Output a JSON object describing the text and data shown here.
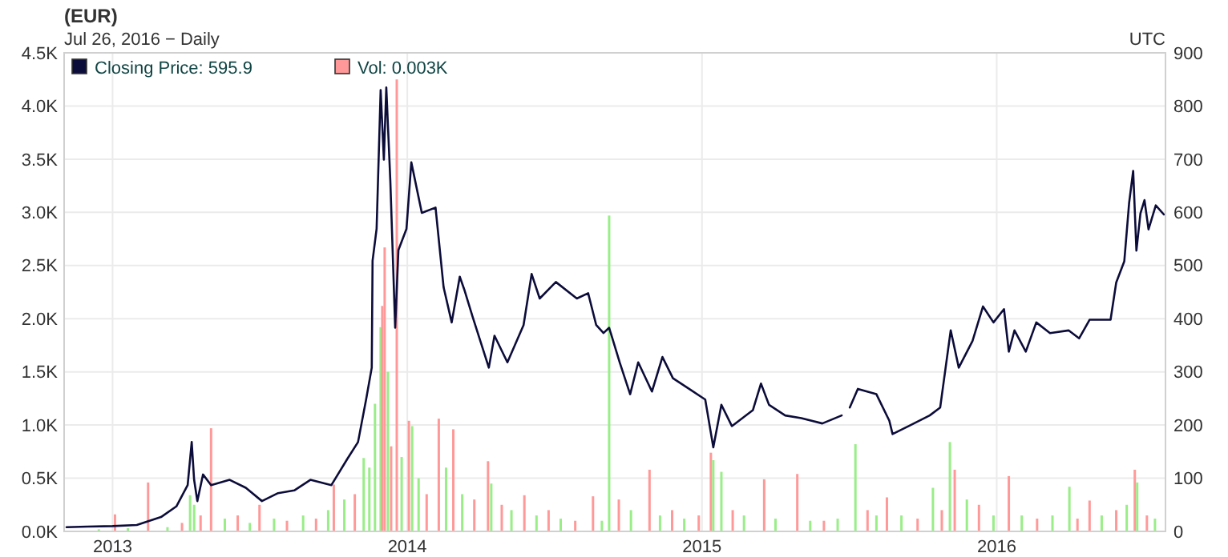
{
  "chart_data": {
    "type": "line",
    "title": "(EUR)",
    "subtitle": "Jul 26, 2016 − Daily",
    "annotations": [
      "UTC"
    ],
    "xlim": [
      "2012-11-02",
      "2016-07-28"
    ],
    "xticks": [
      {
        "value": "2013-01-01",
        "label": "2013"
      },
      {
        "value": "2014-01-01",
        "label": "2014"
      },
      {
        "value": "2015-01-01",
        "label": "2015"
      },
      {
        "value": "2016-01-01",
        "label": "2016"
      }
    ],
    "ylim": [
      0,
      4.5
    ],
    "yticks": [
      {
        "value": 0,
        "label": "0.0K"
      },
      {
        "value": 0.5,
        "label": "0.5K"
      },
      {
        "value": 1,
        "label": "1.0K"
      },
      {
        "value": 1.5,
        "label": "1.5K"
      },
      {
        "value": 2,
        "label": "2.0K"
      },
      {
        "value": 2.5,
        "label": "2.5K"
      },
      {
        "value": 3,
        "label": "3.0K"
      },
      {
        "value": 3.5,
        "label": "3.5K"
      },
      {
        "value": 4,
        "label": "4.0K"
      },
      {
        "value": 4.5,
        "label": "4.5K"
      }
    ],
    "y2lim": [
      0,
      900
    ],
    "y2ticks": [
      0,
      100,
      200,
      300,
      400,
      500,
      600,
      700,
      800,
      900
    ],
    "grid": true,
    "legend": "top left",
    "series": [
      {
        "name": "Closing Price: 595.9",
        "axis": "y2",
        "color": "#0c0c3a",
        "x": [
          "2012-11-05",
          "2012-12-01",
          "2013-01-01",
          "2013-01-31",
          "2013-03-02",
          "2013-03-21",
          "2013-04-04",
          "2013-04-09",
          "2013-04-12",
          "2013-04-16",
          "2013-04-23",
          "2013-05-03",
          "2013-05-26",
          "2013-06-15",
          "2013-07-05",
          "2013-07-25",
          "2013-08-14",
          "2013-09-03",
          "2013-09-29",
          "2013-10-19",
          "2013-11-01",
          "2013-11-11",
          "2013-11-18",
          "2013-11-19",
          "2013-11-24",
          "2013-11-29",
          "2013-12-03",
          "2013-12-06",
          "2013-12-11",
          "2013-12-17",
          "2013-12-21",
          "2013-12-31",
          "2014-01-06",
          "2014-01-19",
          "2014-02-05",
          "2014-02-15",
          "2014-02-25",
          "2014-03-07",
          "2014-03-13",
          "2014-03-23",
          "2014-04-12",
          "2014-04-19",
          "2014-05-05",
          "2014-05-25",
          "2014-06-04",
          "2014-06-14",
          "2014-07-04",
          "2014-07-30",
          "2014-08-13",
          "2014-08-23",
          "2014-09-01",
          "2014-09-08",
          "2014-09-21",
          "2014-10-04",
          "2014-10-14",
          "2014-10-31",
          "2014-11-13",
          "2014-11-26",
          "2014-12-16",
          "2015-01-05",
          "2015-01-15",
          "2015-01-25",
          "2015-02-07",
          "2015-03-05",
          "2015-03-15",
          "2015-03-25",
          "2015-04-14",
          "2015-05-04",
          "2015-05-30",
          "2015-06-23",
          "2015-06-28",
          "2015-07-03",
          "2015-07-13",
          "2015-08-05",
          "2015-08-21",
          "2015-08-25",
          "2015-09-14",
          "2015-10-10",
          "2015-10-23",
          "2015-11-05",
          "2015-11-15",
          "2015-12-02",
          "2015-12-15",
          "2015-12-28",
          "2016-01-10",
          "2016-01-16",
          "2016-01-23",
          "2016-02-06",
          "2016-02-19",
          "2016-03-07",
          "2016-03-30",
          "2016-04-12",
          "2016-04-25",
          "2016-05-21",
          "2016-05-28",
          "2016-06-07",
          "2016-06-13",
          "2016-06-18",
          "2016-06-22",
          "2016-06-27",
          "2016-07-02",
          "2016-07-07",
          "2016-07-16",
          "2016-07-26"
        ],
        "values": [
          8,
          9,
          10,
          12,
          27,
          47,
          87,
          168,
          97,
          57,
          107,
          87,
          97,
          82,
          57,
          72,
          77,
          97,
          87,
          137,
          168,
          248,
          308,
          509,
          569,
          830,
          699,
          835,
          659,
          383,
          529,
          569,
          694,
          599,
          609,
          459,
          393,
          479,
          453,
          403,
          308,
          368,
          318,
          388,
          484,
          438,
          469,
          438,
          448,
          388,
          373,
          383,
          318,
          258,
          318,
          263,
          328,
          288,
          268,
          248,
          158,
          238,
          198,
          228,
          278,
          238,
          218,
          213,
          203,
          218,
          null,
          233,
          268,
          258,
          208,
          183,
          198,
          218,
          233,
          378,
          308,
          358,
          423,
          393,
          418,
          338,
          378,
          338,
          393,
          373,
          378,
          363,
          398,
          398,
          468,
          508,
          618,
          678,
          528,
          598,
          623,
          568,
          613,
          596
        ]
      },
      {
        "name": "Vol: 0.003K",
        "type": "bar",
        "axis": "y",
        "color": "#ff9999",
        "x": [
          "2012-12-15",
          "2013-01-04",
          "2013-01-20",
          "2013-02-14",
          "2013-03-10",
          "2013-03-28",
          "2013-04-07",
          "2013-04-12",
          "2013-04-20",
          "2013-05-03",
          "2013-05-20",
          "2013-06-05",
          "2013-06-20",
          "2013-07-02",
          "2013-07-20",
          "2013-08-05",
          "2013-08-25",
          "2013-09-10",
          "2013-09-25",
          "2013-10-02",
          "2013-10-15",
          "2013-10-28",
          "2013-11-08",
          "2013-11-15",
          "2013-11-22",
          "2013-11-29",
          "2013-12-01",
          "2013-12-04",
          "2013-12-08",
          "2013-12-12",
          "2013-12-19",
          "2013-12-25",
          "2014-01-03",
          "2014-01-07",
          "2014-01-15",
          "2014-01-25",
          "2014-02-09",
          "2014-02-18",
          "2014-02-27",
          "2014-03-10",
          "2014-03-25",
          "2014-04-11",
          "2014-04-15",
          "2014-04-28",
          "2014-05-10",
          "2014-05-26",
          "2014-06-10",
          "2014-06-25",
          "2014-07-10",
          "2014-07-28",
          "2014-08-19",
          "2014-08-30",
          "2014-09-08",
          "2014-09-20",
          "2014-10-05",
          "2014-10-28",
          "2014-11-10",
          "2014-11-25",
          "2014-12-10",
          "2014-12-28",
          "2015-01-12",
          "2015-01-15",
          "2015-01-25",
          "2015-02-08",
          "2015-02-22",
          "2015-03-19",
          "2015-04-02",
          "2015-04-29",
          "2015-05-15",
          "2015-06-01",
          "2015-06-18",
          "2015-07-10",
          "2015-07-25",
          "2015-08-05",
          "2015-08-18",
          "2015-09-05",
          "2015-09-25",
          "2015-10-14",
          "2015-10-25",
          "2015-11-04",
          "2015-11-10",
          "2015-11-25",
          "2015-12-10",
          "2015-12-28",
          "2016-01-16",
          "2016-02-01",
          "2016-02-20",
          "2016-03-10",
          "2016-03-31",
          "2016-04-10",
          "2016-04-25",
          "2016-05-10",
          "2016-05-28",
          "2016-06-10",
          "2016-06-20",
          "2016-06-23",
          "2016-07-05",
          "2016-07-15",
          "2016-07-26"
        ],
        "values": [
          0.02,
          0.16,
          0.03,
          0.46,
          0.04,
          0.08,
          0.34,
          0.25,
          0.15,
          0.97,
          0.12,
          0.15,
          0.08,
          0.25,
          0.12,
          0.1,
          0.15,
          0.12,
          0.2,
          0.44,
          0.3,
          0.35,
          0.69,
          0.6,
          1.2,
          1.92,
          2.12,
          2.67,
          1.5,
          0.8,
          4.25,
          0.7,
          1.04,
          0.99,
          0.5,
          0.35,
          1.06,
          0.6,
          0.96,
          0.35,
          0.3,
          0.66,
          0.45,
          0.25,
          0.2,
          0.34,
          0.15,
          0.2,
          0.12,
          0.1,
          0.33,
          0.1,
          2.97,
          0.3,
          0.2,
          0.58,
          0.15,
          0.2,
          0.12,
          0.15,
          0.74,
          0.67,
          0.56,
          0.2,
          0.15,
          0.49,
          0.12,
          0.54,
          0.1,
          0.1,
          0.12,
          0.82,
          0.2,
          0.15,
          0.32,
          0.15,
          0.12,
          0.41,
          0.2,
          0.84,
          0.58,
          0.3,
          0.25,
          0.15,
          0.52,
          0.15,
          0.12,
          0.15,
          0.42,
          0.12,
          0.29,
          0.15,
          0.2,
          0.25,
          0.58,
          0.46,
          0.15,
          0.12,
          0
        ],
        "colors": [
          "#99ee88",
          "#ff9999",
          "#99ee88",
          "#ff9999",
          "#99ee88",
          "#ff9999",
          "#99ee88",
          "#99ee88",
          "#ff9999",
          "#ff9999",
          "#99ee88",
          "#ff9999",
          "#99ee88",
          "#ff9999",
          "#99ee88",
          "#ff9999",
          "#99ee88",
          "#ff9999",
          "#99ee88",
          "#ff9999",
          "#99ee88",
          "#ff9999",
          "#99ee88",
          "#99ee88",
          "#99ee88",
          "#99ee88",
          "#ff9999",
          "#ff9999",
          "#99ee88",
          "#ff9999",
          "#ff9999",
          "#99ee88",
          "#ff9999",
          "#99ee88",
          "#99ee88",
          "#ff9999",
          "#ff9999",
          "#99ee88",
          "#ff9999",
          "#99ee88",
          "#ff9999",
          "#ff9999",
          "#99ee88",
          "#ff9999",
          "#99ee88",
          "#ff9999",
          "#99ee88",
          "#ff9999",
          "#99ee88",
          "#ff9999",
          "#ff9999",
          "#99ee88",
          "#99ee88",
          "#ff9999",
          "#99ee88",
          "#ff9999",
          "#99ee88",
          "#ff9999",
          "#99ee88",
          "#ff9999",
          "#ff9999",
          "#99ee88",
          "#99ee88",
          "#ff9999",
          "#99ee88",
          "#ff9999",
          "#99ee88",
          "#ff9999",
          "#99ee88",
          "#ff9999",
          "#99ee88",
          "#99ee88",
          "#ff9999",
          "#99ee88",
          "#ff9999",
          "#99ee88",
          "#ff9999",
          "#99ee88",
          "#ff9999",
          "#99ee88",
          "#ff9999",
          "#99ee88",
          "#ff9999",
          "#99ee88",
          "#ff9999",
          "#99ee88",
          "#ff9999",
          "#99ee88",
          "#99ee88",
          "#ff9999",
          "#ff9999",
          "#99ee88",
          "#ff9999",
          "#99ee88",
          "#ff9999",
          "#99ee88",
          "#ff9999",
          "#99ee88",
          "#ff9999"
        ]
      }
    ]
  }
}
